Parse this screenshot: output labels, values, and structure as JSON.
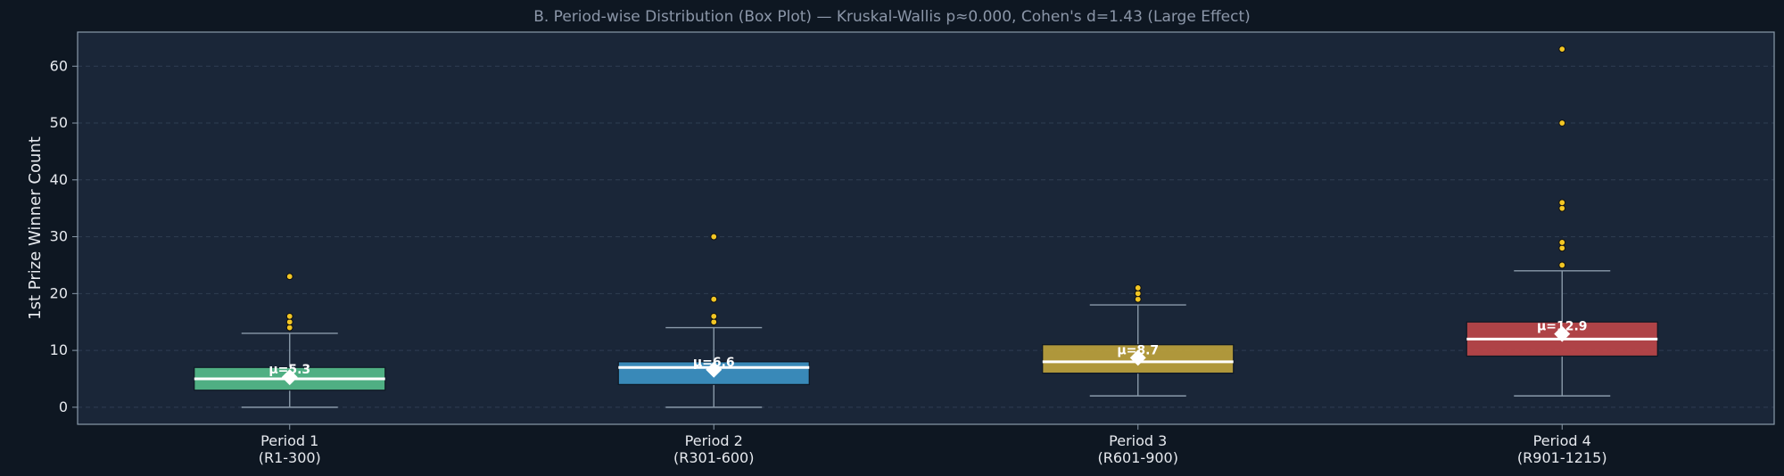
{
  "chart_data": {
    "type": "box",
    "title": "B. Period-wise Distribution (Box Plot) — Kruskal-Wallis p≈0.000, Cohen's d=1.43 (Large Effect)",
    "xlabel": "",
    "ylabel": "1st Prize Winner Count",
    "ylim": [
      -3,
      66
    ],
    "yticks": [
      0,
      10,
      20,
      30,
      40,
      50,
      60
    ],
    "grid": true,
    "legend": "none",
    "colors": {
      "background": "#0e1722",
      "plot_background": "#1a2638",
      "frame": "#8a9aaa",
      "grid": "#2f3d52",
      "whisker": "#8a9aaa",
      "median": "#ffffff",
      "outlier": "#f2c624",
      "mean_marker": "#ffffff"
    },
    "categories": [
      {
        "label_line1": "Period 1",
        "label_line2": "(R1-300)",
        "color": "#52b788",
        "whisker_low": 0,
        "q1": 3,
        "median": 5,
        "q3": 7,
        "whisker_high": 13,
        "mean": 5.3,
        "mean_label": "μ=5.3",
        "outliers": [
          14,
          15,
          16,
          23
        ]
      },
      {
        "label_line1": "Period 2",
        "label_line2": "(R301-600)",
        "color": "#3b8fbf",
        "whisker_low": 0,
        "q1": 4,
        "median": 7,
        "q3": 8,
        "whisker_high": 14,
        "mean": 6.6,
        "mean_label": "μ=6.6",
        "outliers": [
          15,
          16,
          19,
          30
        ]
      },
      {
        "label_line1": "Period 3",
        "label_line2": "(R601-900)",
        "color": "#b89e3c",
        "whisker_low": 2,
        "q1": 6,
        "median": 8,
        "q3": 11,
        "whisker_high": 18,
        "mean": 8.7,
        "mean_label": "μ=8.7",
        "outliers": [
          19,
          20,
          21
        ]
      },
      {
        "label_line1": "Period 4",
        "label_line2": "(R901-1215)",
        "color": "#b84548",
        "whisker_low": 2,
        "q1": 9,
        "median": 12,
        "q3": 15,
        "whisker_high": 24,
        "mean": 12.9,
        "mean_label": "μ=12.9",
        "outliers": [
          25,
          28,
          29,
          35,
          36,
          50,
          63
        ]
      }
    ]
  }
}
